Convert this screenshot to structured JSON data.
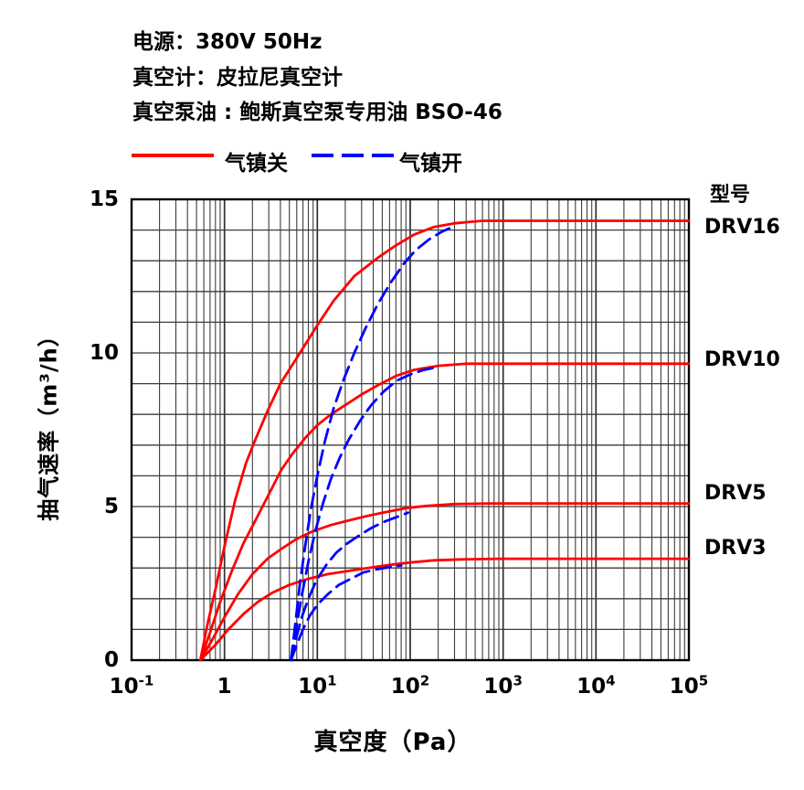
{
  "header": {
    "lines": [
      "电源：380V 50Hz",
      "真空计：皮拉尼真空计",
      "真空泵油 : 鲍斯真空泵专用油 BSO-46"
    ]
  },
  "legend": {
    "items": [
      {
        "label": "气镇关",
        "color": "#ff0000",
        "line": "solid"
      },
      {
        "label": "气镇开",
        "color": "#0000ff",
        "line": "dashed"
      }
    ]
  },
  "model_column": {
    "title": "型号",
    "labels": [
      "DRV16",
      "DRV10",
      "DRV5",
      "DRV3"
    ]
  },
  "chart_data": {
    "type": "line",
    "title": "",
    "xlabel": "真空度（Pa）",
    "ylabel": "抽气速率（m³/h）",
    "x_scale": "log",
    "xlim": [
      0.1,
      100000
    ],
    "ylim": [
      0,
      15
    ],
    "grid": "full log grid on x (decades with 2-9 minors), 1-unit grid on y, boxed frame",
    "legend_position": "above plot",
    "x_ticks": [
      {
        "base": "10",
        "exp": "-1",
        "value": 0.1
      },
      {
        "base": "1",
        "exp": "",
        "value": 1
      },
      {
        "base": "10",
        "exp": "1",
        "value": 10
      },
      {
        "base": "10",
        "exp": "2",
        "value": 100
      },
      {
        "base": "10",
        "exp": "3",
        "value": 1000
      },
      {
        "base": "10",
        "exp": "4",
        "value": 10000
      },
      {
        "base": "10",
        "exp": "5",
        "value": 100000
      }
    ],
    "y_ticks": [
      {
        "label": "0",
        "value": 0
      },
      {
        "label": "5",
        "value": 5
      },
      {
        "label": "10",
        "value": 10
      },
      {
        "label": "15",
        "value": 15
      }
    ],
    "series": [
      {
        "name": "DRV16 气镇关",
        "model": "DRV16",
        "gas_ballast": "closed",
        "color": "#ff0000",
        "line": "solid",
        "points": [
          [
            0.55,
            0
          ],
          [
            0.65,
            1.1
          ],
          [
            0.8,
            2.3
          ],
          [
            1.0,
            3.7
          ],
          [
            1.3,
            5.2
          ],
          [
            1.7,
            6.4
          ],
          [
            2.1,
            7.1
          ],
          [
            2.9,
            8.1
          ],
          [
            4,
            9.0
          ],
          [
            6.5,
            10.0
          ],
          [
            10,
            10.9
          ],
          [
            15,
            11.7
          ],
          [
            25,
            12.5
          ],
          [
            45,
            13.1
          ],
          [
            70,
            13.5
          ],
          [
            110,
            13.85
          ],
          [
            180,
            14.1
          ],
          [
            300,
            14.22
          ],
          [
            600,
            14.3
          ],
          [
            2000,
            14.3
          ],
          [
            100000,
            14.3
          ]
        ]
      },
      {
        "name": "DRV10 气镇关",
        "model": "DRV10",
        "gas_ballast": "closed",
        "color": "#ff0000",
        "line": "solid",
        "points": [
          [
            0.55,
            0
          ],
          [
            0.7,
            0.9
          ],
          [
            0.9,
            1.9
          ],
          [
            1.2,
            2.9
          ],
          [
            1.6,
            3.8
          ],
          [
            2.2,
            4.6
          ],
          [
            3.0,
            5.4
          ],
          [
            4.1,
            6.2
          ],
          [
            5.5,
            6.75
          ],
          [
            7.5,
            7.25
          ],
          [
            10,
            7.65
          ],
          [
            14,
            8.0
          ],
          [
            20,
            8.3
          ],
          [
            30,
            8.65
          ],
          [
            45,
            8.95
          ],
          [
            70,
            9.25
          ],
          [
            110,
            9.45
          ],
          [
            200,
            9.58
          ],
          [
            400,
            9.65
          ],
          [
            2000,
            9.65
          ],
          [
            100000,
            9.65
          ]
        ]
      },
      {
        "name": "DRV5 气镇关",
        "model": "DRV5",
        "gas_ballast": "closed",
        "color": "#ff0000",
        "line": "solid",
        "points": [
          [
            0.55,
            0
          ],
          [
            0.75,
            0.7
          ],
          [
            1.0,
            1.4
          ],
          [
            1.4,
            2.15
          ],
          [
            2.0,
            2.8
          ],
          [
            2.9,
            3.3
          ],
          [
            4,
            3.6
          ],
          [
            6,
            3.95
          ],
          [
            9,
            4.2
          ],
          [
            14,
            4.4
          ],
          [
            22,
            4.55
          ],
          [
            35,
            4.7
          ],
          [
            55,
            4.82
          ],
          [
            90,
            4.95
          ],
          [
            150,
            5.02
          ],
          [
            300,
            5.08
          ],
          [
            700,
            5.1
          ],
          [
            3000,
            5.1
          ],
          [
            100000,
            5.1
          ]
        ]
      },
      {
        "name": "DRV3 气镇关",
        "model": "DRV3",
        "gas_ballast": "closed",
        "color": "#ff0000",
        "line": "solid",
        "points": [
          [
            0.55,
            0
          ],
          [
            0.8,
            0.5
          ],
          [
            1.1,
            1.0
          ],
          [
            1.6,
            1.5
          ],
          [
            2.3,
            1.9
          ],
          [
            3.3,
            2.2
          ],
          [
            5,
            2.45
          ],
          [
            8,
            2.65
          ],
          [
            13,
            2.8
          ],
          [
            21,
            2.9
          ],
          [
            35,
            3.0
          ],
          [
            60,
            3.1
          ],
          [
            100,
            3.18
          ],
          [
            180,
            3.25
          ],
          [
            350,
            3.28
          ],
          [
            900,
            3.3
          ],
          [
            4000,
            3.3
          ],
          [
            100000,
            3.3
          ]
        ]
      },
      {
        "name": "DRV16 气镇开",
        "model": "DRV16",
        "gas_ballast": "open",
        "color": "#0000ff",
        "line": "dashed",
        "points": [
          [
            5.2,
            0
          ],
          [
            5.8,
            1.2
          ],
          [
            6.5,
            2.5
          ],
          [
            7.4,
            3.7
          ],
          [
            8.5,
            4.9
          ],
          [
            10,
            6.0
          ],
          [
            12,
            7.1
          ],
          [
            15,
            8.2
          ],
          [
            19,
            9.1
          ],
          [
            25,
            10.0
          ],
          [
            33,
            10.8
          ],
          [
            45,
            11.6
          ],
          [
            62,
            12.3
          ],
          [
            85,
            12.9
          ],
          [
            115,
            13.35
          ],
          [
            160,
            13.7
          ],
          [
            220,
            13.95
          ],
          [
            310,
            14.15
          ]
        ]
      },
      {
        "name": "DRV10 气镇开",
        "model": "DRV10",
        "gas_ballast": "open",
        "color": "#0000ff",
        "line": "dashed",
        "points": [
          [
            5.2,
            0
          ],
          [
            5.9,
            1.0
          ],
          [
            6.8,
            2.1
          ],
          [
            8,
            3.2
          ],
          [
            9.5,
            4.2
          ],
          [
            11.5,
            5.1
          ],
          [
            14,
            5.9
          ],
          [
            17.5,
            6.6
          ],
          [
            22,
            7.2
          ],
          [
            29,
            7.8
          ],
          [
            38,
            8.3
          ],
          [
            52,
            8.75
          ],
          [
            72,
            9.1
          ],
          [
            100,
            9.3
          ],
          [
            140,
            9.45
          ],
          [
            205,
            9.55
          ]
        ]
      },
      {
        "name": "DRV5 气镇开",
        "model": "DRV5",
        "gas_ballast": "open",
        "color": "#0000ff",
        "line": "dashed",
        "points": [
          [
            5.2,
            0
          ],
          [
            5.9,
            0.7
          ],
          [
            6.8,
            1.4
          ],
          [
            8,
            2.0
          ],
          [
            9.8,
            2.6
          ],
          [
            12.5,
            3.1
          ],
          [
            16,
            3.5
          ],
          [
            21,
            3.8
          ],
          [
            28,
            4.05
          ],
          [
            38,
            4.3
          ],
          [
            52,
            4.5
          ],
          [
            70,
            4.65
          ],
          [
            95,
            4.8
          ]
        ]
      },
      {
        "name": "DRV3 气镇开",
        "model": "DRV3",
        "gas_ballast": "open",
        "color": "#0000ff",
        "line": "dashed",
        "points": [
          [
            5.2,
            0
          ],
          [
            6,
            0.5
          ],
          [
            7,
            1.0
          ],
          [
            8.3,
            1.45
          ],
          [
            10,
            1.8
          ],
          [
            13,
            2.15
          ],
          [
            17,
            2.45
          ],
          [
            23,
            2.65
          ],
          [
            31,
            2.85
          ],
          [
            42,
            2.95
          ],
          [
            58,
            3.02
          ],
          [
            80,
            3.08
          ]
        ]
      }
    ]
  }
}
